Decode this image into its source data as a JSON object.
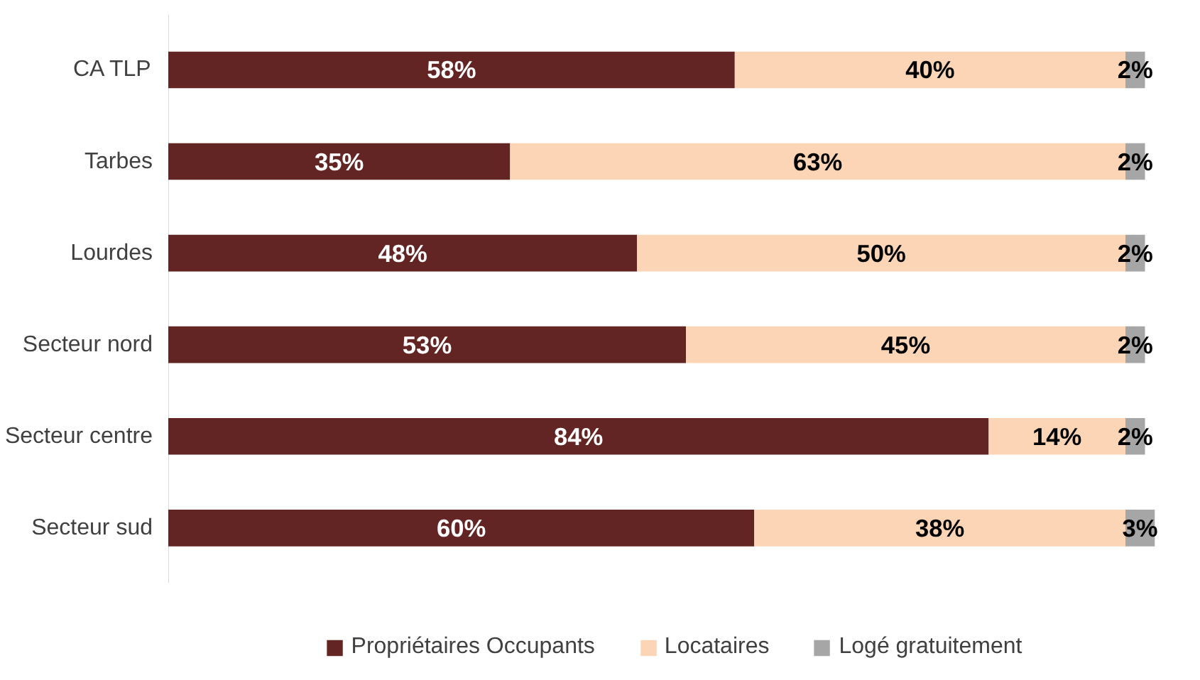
{
  "chart_data": {
    "type": "bar",
    "orientation": "horizontal",
    "stacked": true,
    "categories": [
      "CA TLP",
      "Tarbes",
      "Lourdes",
      "Secteur nord",
      "Secteur centre",
      "Secteur sud"
    ],
    "tick_labels": "y",
    "grid": false,
    "legend": "bottom",
    "series": [
      {
        "name": "Propriétaires Occupants",
        "color": "#632523",
        "values": [
          58,
          35,
          48,
          53,
          84,
          60
        ],
        "value_labels": [
          "58%",
          "35%",
          "48%",
          "53%",
          "84%",
          "60%"
        ]
      },
      {
        "name": "Locataires",
        "color": "#fbd5b5",
        "values": [
          40,
          63,
          50,
          45,
          14,
          38
        ],
        "value_labels": [
          "40%",
          "63%",
          "50%",
          "45%",
          "14%",
          "38%"
        ]
      },
      {
        "name": "Logé gratuitement",
        "color": "#a6a6a6",
        "values": [
          2,
          2,
          2,
          2,
          2,
          3
        ],
        "value_labels": [
          "2%",
          "2%",
          "2%",
          "2%",
          "2%",
          "3%"
        ]
      }
    ]
  }
}
